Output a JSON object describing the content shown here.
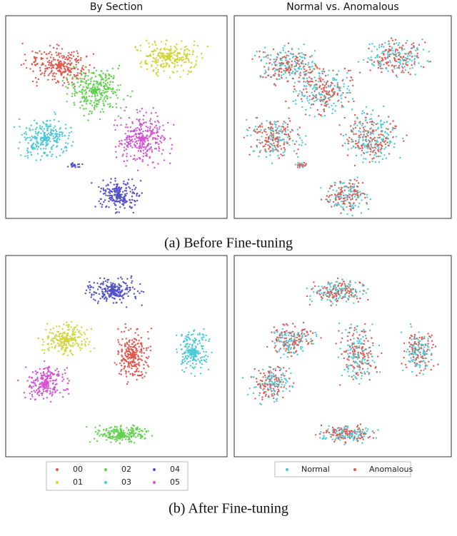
{
  "subfigures": [
    {
      "caption": "(a) Before Fine-tuning",
      "panels": [
        {
          "title": "By Section"
        },
        {
          "title": "Normal vs. Anomalous"
        }
      ]
    },
    {
      "caption": "(b) After Fine-tuning",
      "panels": [
        {},
        {}
      ]
    }
  ],
  "legends": {
    "section": [
      {
        "label": "00",
        "color": "#e0584c"
      },
      {
        "label": "01",
        "color": "#d2d43a"
      },
      {
        "label": "02",
        "color": "#5fd24c"
      },
      {
        "label": "03",
        "color": "#4cc8d8"
      },
      {
        "label": "04",
        "color": "#5252c8"
      },
      {
        "label": "05",
        "color": "#d552d5"
      }
    ],
    "status": [
      {
        "label": "Normal",
        "color": "#4cc8d8"
      },
      {
        "label": "Anomalous",
        "color": "#e0584c"
      }
    ]
  }
}
